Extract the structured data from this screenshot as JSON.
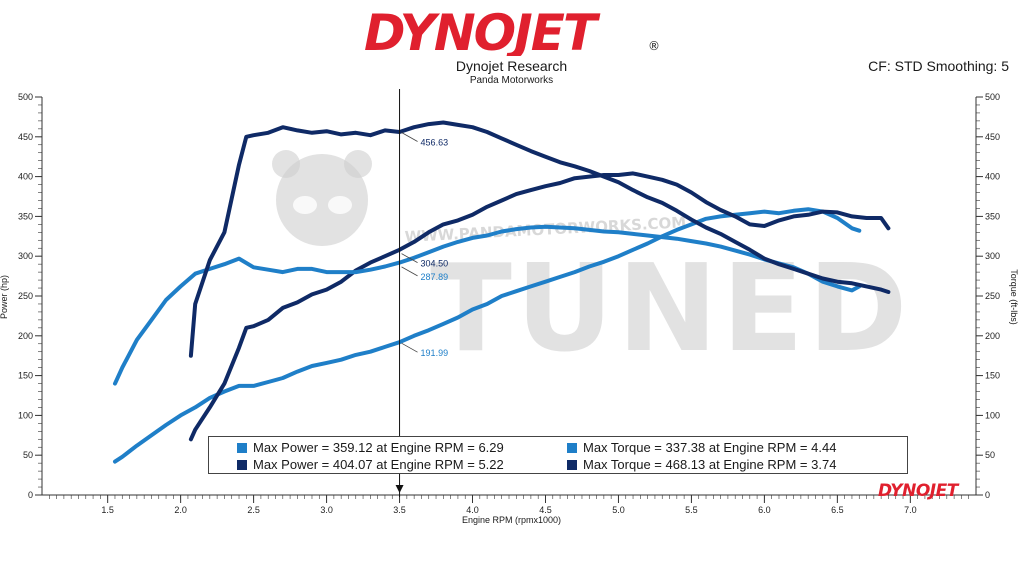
{
  "header": {
    "logo_text": "DYNOJET",
    "logo_mark": "®",
    "title": "Dynojet Research",
    "subtitle": "Panda Motorworks",
    "cf_text": "CF: STD Smoothing: 5"
  },
  "watermark": {
    "text": "TUNED",
    "url_text": "WWW.PANDAMOTORWORKS.COM"
  },
  "footer_logo": "DYNOJET",
  "colors": {
    "light_blue": "#1f7fc8",
    "dark_navy": "#0f2a66",
    "logo_red": "#e0202e",
    "watermark": "#cfcfcf"
  },
  "chart_data": {
    "type": "line",
    "title": "Dynojet Research",
    "subtitle": "Panda Motorworks",
    "xlabel": "Engine RPM (rpmx1000)",
    "ylabel_left": "Power (hp)",
    "ylabel_right": "Torque (ft-lbs)",
    "xlim": [
      1.05,
      7.45
    ],
    "ylim": [
      0,
      500
    ],
    "x_ticks": [
      "1.5",
      "2.0",
      "2.5",
      "3.0",
      "3.5",
      "4.0",
      "4.5",
      "5.0",
      "5.5",
      "6.0",
      "6.5",
      "7.0"
    ],
    "y_ticks": [
      "0",
      "50",
      "100",
      "150",
      "200",
      "250",
      "300",
      "350",
      "400",
      "450",
      "500"
    ],
    "grid": false,
    "cursor_x": 3.5,
    "cursor_labels": [
      {
        "text": "456.63",
        "value": 456.63,
        "color": "dark"
      },
      {
        "text": "304.50",
        "value": 304.5,
        "color": "dark"
      },
      {
        "text": "287.89",
        "value": 287.89,
        "color": "light"
      },
      {
        "text": "191.99",
        "value": 191.99,
        "color": "light"
      }
    ],
    "series": [
      {
        "name": "Max Power",
        "run": "light",
        "kind": "power",
        "x": [
          1.55,
          1.6,
          1.7,
          1.8,
          1.9,
          2.0,
          2.1,
          2.2,
          2.3,
          2.4,
          2.5,
          2.6,
          2.7,
          2.8,
          2.9,
          3.0,
          3.1,
          3.2,
          3.3,
          3.4,
          3.5,
          3.6,
          3.7,
          3.8,
          3.9,
          4.0,
          4.1,
          4.2,
          4.3,
          4.4,
          4.5,
          4.6,
          4.7,
          4.8,
          4.9,
          5.0,
          5.1,
          5.2,
          5.3,
          5.4,
          5.5,
          5.6,
          5.7,
          5.8,
          5.9,
          6.0,
          6.1,
          6.2,
          6.3,
          6.4,
          6.5,
          6.6,
          6.65
        ],
        "y": [
          42,
          48,
          62,
          75,
          88,
          100,
          110,
          122,
          130,
          137,
          137,
          142,
          147,
          155,
          162,
          166,
          170,
          176,
          180,
          186,
          192,
          200,
          207,
          215,
          223,
          233,
          240,
          250,
          256,
          262,
          268,
          274,
          280,
          287,
          293,
          300,
          308,
          316,
          325,
          333,
          340,
          347,
          350,
          352,
          354,
          356,
          354,
          357,
          359,
          356,
          348,
          335,
          332
        ]
      },
      {
        "name": "Max Power",
        "run": "dark",
        "kind": "power",
        "x": [
          2.07,
          2.1,
          2.2,
          2.3,
          2.4,
          2.45,
          2.5,
          2.6,
          2.7,
          2.8,
          2.9,
          3.0,
          3.1,
          3.2,
          3.3,
          3.4,
          3.5,
          3.6,
          3.7,
          3.8,
          3.9,
          4.0,
          4.1,
          4.2,
          4.3,
          4.4,
          4.5,
          4.6,
          4.7,
          4.8,
          4.9,
          5.0,
          5.1,
          5.2,
          5.3,
          5.4,
          5.5,
          5.6,
          5.7,
          5.8,
          5.9,
          6.0,
          6.1,
          6.2,
          6.3,
          6.4,
          6.5,
          6.6,
          6.7,
          6.8,
          6.85
        ],
        "y": [
          70,
          82,
          110,
          140,
          185,
          210,
          212,
          220,
          235,
          242,
          252,
          258,
          268,
          282,
          292,
          300,
          308,
          318,
          330,
          340,
          345,
          352,
          362,
          370,
          378,
          383,
          388,
          392,
          398,
          400,
          402,
          402,
          404,
          400,
          396,
          390,
          380,
          368,
          358,
          350,
          340,
          338,
          345,
          350,
          352,
          356,
          355,
          350,
          348,
          348,
          335
        ]
      },
      {
        "name": "Max Torque",
        "run": "light",
        "kind": "torque",
        "x": [
          1.55,
          1.6,
          1.7,
          1.8,
          1.9,
          2.0,
          2.1,
          2.2,
          2.3,
          2.4,
          2.5,
          2.6,
          2.7,
          2.8,
          2.9,
          3.0,
          3.1,
          3.2,
          3.3,
          3.4,
          3.5,
          3.6,
          3.7,
          3.8,
          3.9,
          4.0,
          4.1,
          4.2,
          4.3,
          4.4,
          4.5,
          4.6,
          4.7,
          4.8,
          4.9,
          5.0,
          5.1,
          5.2,
          5.3,
          5.4,
          5.5,
          5.6,
          5.7,
          5.8,
          5.9,
          6.0,
          6.1,
          6.2,
          6.3,
          6.4,
          6.5,
          6.6,
          6.65
        ],
        "y": [
          140,
          160,
          195,
          220,
          245,
          262,
          278,
          284,
          290,
          297,
          286,
          283,
          280,
          284,
          284,
          280,
          280,
          280,
          283,
          287,
          292,
          298,
          305,
          312,
          318,
          323,
          326,
          331,
          334,
          336,
          337,
          336,
          335,
          333,
          331,
          330,
          328,
          326,
          324,
          322,
          319,
          316,
          312,
          307,
          302,
          296,
          291,
          286,
          278,
          268,
          262,
          257,
          262
        ]
      },
      {
        "name": "Max Torque",
        "run": "dark",
        "kind": "torque",
        "x": [
          2.07,
          2.1,
          2.2,
          2.3,
          2.4,
          2.45,
          2.5,
          2.6,
          2.7,
          2.8,
          2.9,
          3.0,
          3.1,
          3.2,
          3.3,
          3.4,
          3.5,
          3.6,
          3.7,
          3.8,
          3.9,
          4.0,
          4.1,
          4.2,
          4.3,
          4.4,
          4.5,
          4.6,
          4.7,
          4.8,
          4.9,
          5.0,
          5.1,
          5.2,
          5.3,
          5.4,
          5.5,
          5.6,
          5.7,
          5.8,
          5.9,
          6.0,
          6.1,
          6.2,
          6.3,
          6.4,
          6.5,
          6.6,
          6.7,
          6.8,
          6.85
        ],
        "y": [
          175,
          240,
          295,
          330,
          415,
          450,
          452,
          455,
          462,
          458,
          455,
          457,
          453,
          455,
          452,
          458,
          456,
          462,
          466,
          468,
          465,
          462,
          456,
          448,
          440,
          432,
          425,
          418,
          413,
          407,
          400,
          393,
          383,
          374,
          367,
          357,
          346,
          336,
          328,
          318,
          308,
          297,
          290,
          284,
          278,
          272,
          268,
          266,
          262,
          258,
          255
        ]
      }
    ],
    "legend": [
      {
        "label": "Max Power = 359.12 at Engine RPM = 6.29",
        "run": "light"
      },
      {
        "label": "Max Torque = 337.38 at Engine RPM = 4.44",
        "run": "light"
      },
      {
        "label": "Max Power = 404.07 at Engine RPM = 5.22",
        "run": "dark"
      },
      {
        "label": "Max Torque = 468.13 at Engine RPM = 3.74",
        "run": "dark"
      }
    ]
  }
}
